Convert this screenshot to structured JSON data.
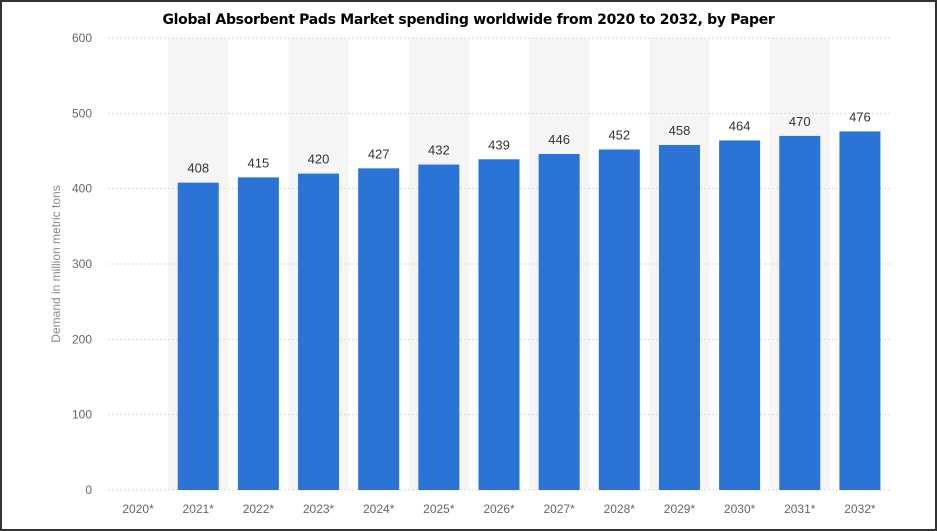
{
  "chart_data": {
    "type": "bar",
    "title": "Global Absorbent Pads Market spending worldwide from 2020 to 2032, by Paper",
    "ylabel": "Demand in million metric tons",
    "xlabel": "",
    "categories": [
      "2020*",
      "2021*",
      "2022*",
      "2023*",
      "2024*",
      "2025*",
      "2026*",
      "2027*",
      "2028*",
      "2029*",
      "2030*",
      "2031*",
      "2032*"
    ],
    "values": [
      null,
      408,
      415,
      420,
      427,
      432,
      439,
      446,
      452,
      458,
      464,
      470,
      476
    ],
    "value_labels": [
      "",
      "408",
      "415",
      "420",
      "427",
      "432",
      "439",
      "446",
      "452",
      "458",
      "464",
      "470",
      "476"
    ],
    "ylim": [
      0,
      600
    ],
    "yticks": [
      "0",
      "100",
      "200",
      "300",
      "400",
      "500",
      "600"
    ],
    "grid": true,
    "bar_color": "#2b74d6",
    "band_color": "#f5f5f5",
    "grid_color": "#d9d9d9"
  }
}
